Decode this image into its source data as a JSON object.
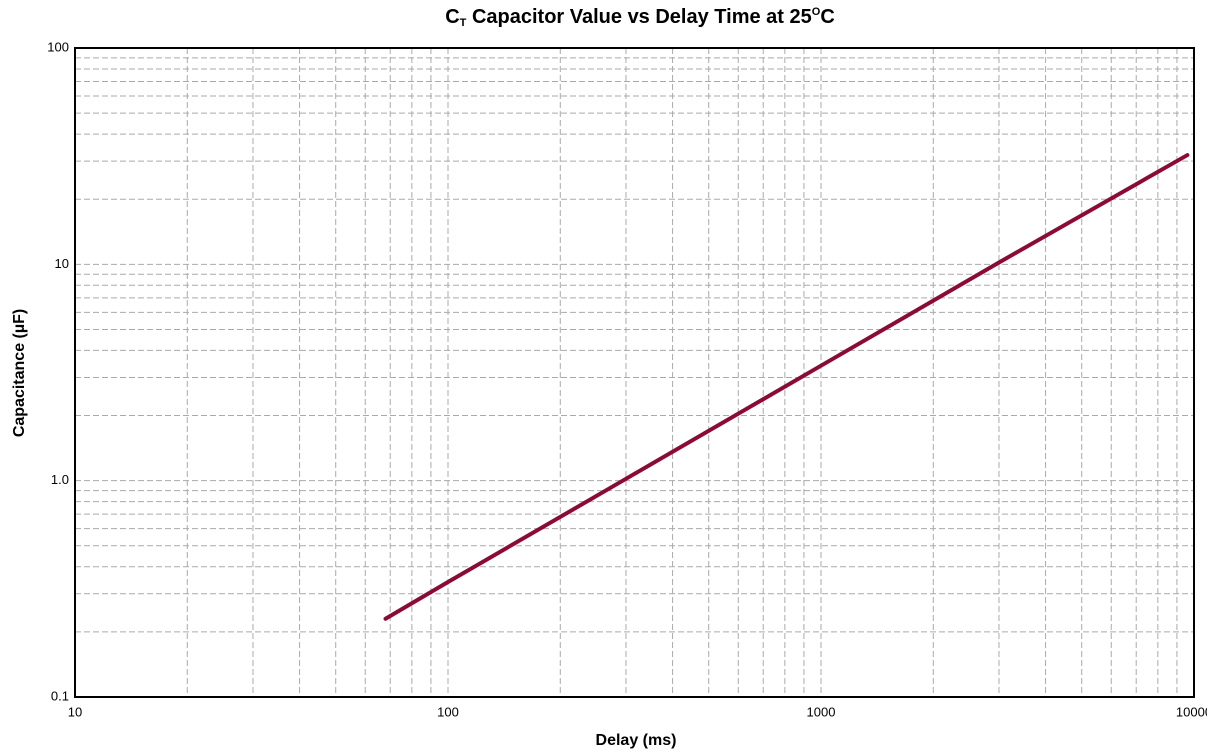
{
  "chart_data": {
    "type": "line",
    "title": [
      "C",
      "T",
      " Capacitor Value vs Delay Time at 25",
      "O",
      "C"
    ],
    "x_label": "Delay (ms)",
    "y_label": "Capacitance (µF)",
    "x": [
      68,
      100,
      300,
      1000,
      3000,
      9600
    ],
    "series": [
      {
        "name": "CT",
        "color": "#8c0b34",
        "values": [
          0.23,
          0.34,
          1.02,
          3.4,
          10.2,
          32
        ]
      }
    ],
    "xscale": "log",
    "yscale": "log",
    "xlim": [
      10,
      10000
    ],
    "ylim": [
      0.1,
      100
    ],
    "xticks": [
      10,
      100,
      1000,
      10000
    ],
    "yticks": [
      0.1,
      {
        "value": 1,
        "label": "1.0"
      },
      10,
      100
    ],
    "xminor": [
      20,
      30,
      40,
      50,
      60,
      70,
      80,
      90,
      200,
      300,
      400,
      500,
      600,
      700,
      800,
      900,
      2000,
      3000,
      4000,
      5000,
      6000,
      7000,
      8000,
      9000
    ],
    "yminor": [
      0.2,
      0.3,
      0.4,
      0.5,
      0.6,
      0.7,
      0.8,
      0.9,
      2,
      3,
      4,
      5,
      6,
      7,
      8,
      9,
      20,
      30,
      40,
      50,
      60,
      70,
      80,
      90
    ],
    "grid": true
  }
}
